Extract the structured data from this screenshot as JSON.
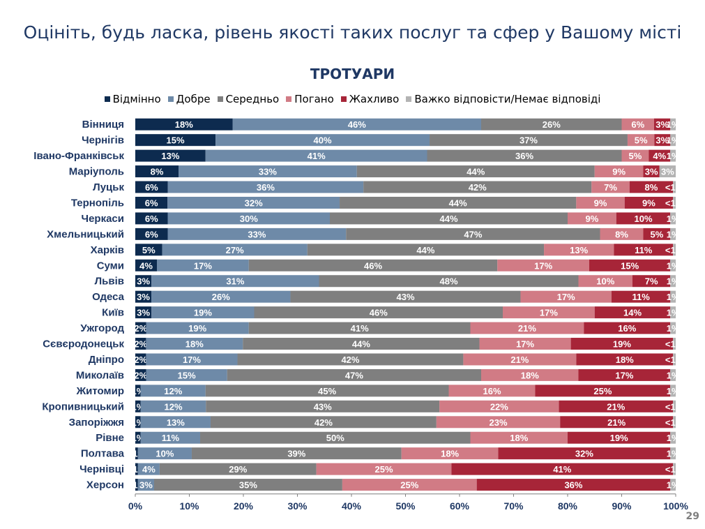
{
  "slide_title": "Оцініть, будь ласка, рівень якості таких послуг та сфер у Вашому місті",
  "slide_number": "29",
  "colors": {
    "Відмінно": "#0d2b4f",
    "Добре": "#6e8aa8",
    "Середньо": "#7f7f7f",
    "Погано": "#d17b85",
    "Жахливо": "#a72538",
    "Важко відповісти/Немає відповіді": "#b3b3b3"
  },
  "chart_data": {
    "type": "bar",
    "orientation": "horizontal",
    "stacked": "percent",
    "title": "ТРОТУАРИ",
    "legend_position": "top",
    "xlim": [
      0,
      100
    ],
    "x_ticks": [
      "0%",
      "10%",
      "20%",
      "30%",
      "40%",
      "50%",
      "60%",
      "70%",
      "80%",
      "90%",
      "100%"
    ],
    "categories": [
      "Вінниця",
      "Чернігів",
      "Івано-Франківськ",
      "Маріуполь",
      "Луцьк",
      "Тернопіль",
      "Черкаси",
      "Хмельницький",
      "Харків",
      "Суми",
      "Львів",
      "Одеса",
      "Київ",
      "Ужгород",
      "Сєвєродонецьк",
      "Дніпро",
      "Миколаїв",
      "Житомир",
      "Кропивницький",
      "Запоріжжя",
      "Рівне",
      "Полтава",
      "Чернівці",
      "Херсон"
    ],
    "series": [
      {
        "name": "Відмінно",
        "values": [
          18,
          15,
          13,
          8,
          6,
          6,
          6,
          6,
          5,
          4,
          3,
          3,
          3,
          2,
          2,
          2,
          2,
          1,
          1,
          1,
          1,
          0.5,
          0.5,
          0.5
        ],
        "labels": [
          "18%",
          "15%",
          "13%",
          "8%",
          "6%",
          "6%",
          "6%",
          "6%",
          "5%",
          "4%",
          "3%",
          "3%",
          "3%",
          "2%",
          "2%",
          "2%",
          "2%",
          "1%",
          "1%",
          "1%",
          "1%",
          "<1%",
          "<1%",
          "<1%"
        ]
      },
      {
        "name": "Добре",
        "values": [
          46,
          40,
          41,
          33,
          36,
          32,
          30,
          33,
          27,
          17,
          31,
          26,
          19,
          19,
          18,
          17,
          15,
          12,
          12,
          13,
          11,
          10,
          4,
          3
        ],
        "labels": [
          "46%",
          "40%",
          "41%",
          "33%",
          "36%",
          "32%",
          "30%",
          "33%",
          "27%",
          "17%",
          "31%",
          "26%",
          "19%",
          "19%",
          "18%",
          "17%",
          "15%",
          "12%",
          "12%",
          "13%",
          "11%",
          "10%",
          "4%",
          "3%"
        ]
      },
      {
        "name": "Середньо",
        "values": [
          26,
          37,
          36,
          44,
          42,
          44,
          44,
          47,
          44,
          46,
          48,
          43,
          46,
          41,
          44,
          42,
          47,
          45,
          43,
          42,
          50,
          39,
          29,
          35
        ],
        "labels": [
          "26%",
          "37%",
          "36%",
          "44%",
          "42%",
          "44%",
          "44%",
          "47%",
          "44%",
          "46%",
          "48%",
          "43%",
          "46%",
          "41%",
          "44%",
          "42%",
          "47%",
          "45%",
          "43%",
          "42%",
          "50%",
          "39%",
          "29%",
          "35%"
        ]
      },
      {
        "name": "Погано",
        "values": [
          6,
          5,
          5,
          9,
          7,
          9,
          9,
          8,
          13,
          17,
          10,
          17,
          17,
          21,
          17,
          21,
          18,
          16,
          22,
          23,
          18,
          18,
          25,
          25
        ],
        "labels": [
          "6%",
          "5%",
          "5%",
          "9%",
          "7%",
          "9%",
          "9%",
          "8%",
          "13%",
          "17%",
          "10%",
          "17%",
          "17%",
          "21%",
          "17%",
          "21%",
          "18%",
          "16%",
          "22%",
          "23%",
          "18%",
          "18%",
          "25%",
          "25%"
        ]
      },
      {
        "name": "Жахливо",
        "values": [
          3,
          3,
          4,
          3,
          8,
          9,
          10,
          5,
          11,
          15,
          7,
          11,
          14,
          16,
          19,
          18,
          17,
          25,
          21,
          21,
          19,
          32,
          41,
          36
        ],
        "labels": [
          "3%",
          "3%",
          "4%",
          "3%",
          "8%",
          "9%",
          "10%",
          "5%",
          "11%",
          "15%",
          "7%",
          "11%",
          "14%",
          "16%",
          "19%",
          "18%",
          "17%",
          "25%",
          "21%",
          "21%",
          "19%",
          "32%",
          "41%",
          "36%"
        ]
      },
      {
        "name": "Важко відповісти/Немає відповіді",
        "values": [
          1,
          1,
          1,
          3,
          0.5,
          0.5,
          1,
          1,
          0.5,
          1,
          1,
          1,
          1,
          1,
          0.5,
          0.5,
          1,
          1,
          0.5,
          0.5,
          1,
          1,
          0.5,
          1
        ],
        "labels": [
          "1%",
          "1%",
          "1%",
          "3%",
          "<1%",
          "<1%",
          "1%",
          "1%",
          "<1%",
          "1%",
          "1%",
          "1%",
          "1%",
          "1%",
          "<1%",
          "<1%",
          "1%",
          "1%",
          "<1%",
          "<1%",
          "1%",
          "1%",
          "<1%",
          "1%"
        ]
      }
    ]
  }
}
